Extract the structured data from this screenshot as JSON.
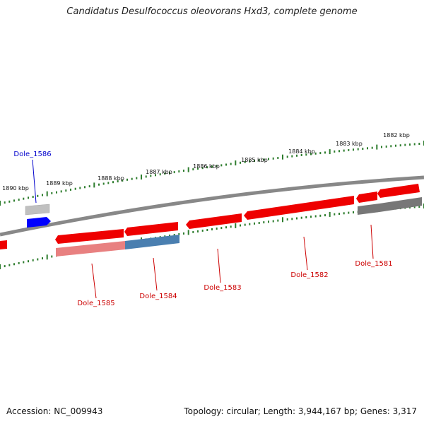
{
  "title": "Candidatus Desulfococcus oleovorans Hxd3, complete genome",
  "footer": {
    "accession": "Accession: NC_009943",
    "summary": "Topology: circular; Length: 3,944,167 bp; Genes: 3,317"
  },
  "kbp_ticks": [
    "1890 kbp",
    "1889 kbp",
    "1888 kbp",
    "1887 kbp",
    "1886 kbp",
    "1885 kbp",
    "1884 kbp",
    "1883 kbp",
    "1882 kbp"
  ],
  "genes": [
    {
      "label": "Dole_1586",
      "color": "#0000cc"
    },
    {
      "label": "Dole_1585",
      "color": "#cc0000"
    },
    {
      "label": "Dole_1584",
      "color": "#cc0000"
    },
    {
      "label": "Dole_1583",
      "color": "#cc0000"
    },
    {
      "label": "Dole_1582",
      "color": "#cc0000"
    },
    {
      "label": "Dole_1581",
      "color": "#cc0000"
    }
  ],
  "colors": {
    "backbone": "#888888",
    "forward_gene": "#0000ff",
    "reverse_gene": "#ee0000",
    "feature_pink": "#e88080",
    "feature_steel": "#4a7fb0",
    "feature_gray": "#777777",
    "feature_lightgray": "#c0c0c0",
    "tick": "#2e7d2e"
  }
}
